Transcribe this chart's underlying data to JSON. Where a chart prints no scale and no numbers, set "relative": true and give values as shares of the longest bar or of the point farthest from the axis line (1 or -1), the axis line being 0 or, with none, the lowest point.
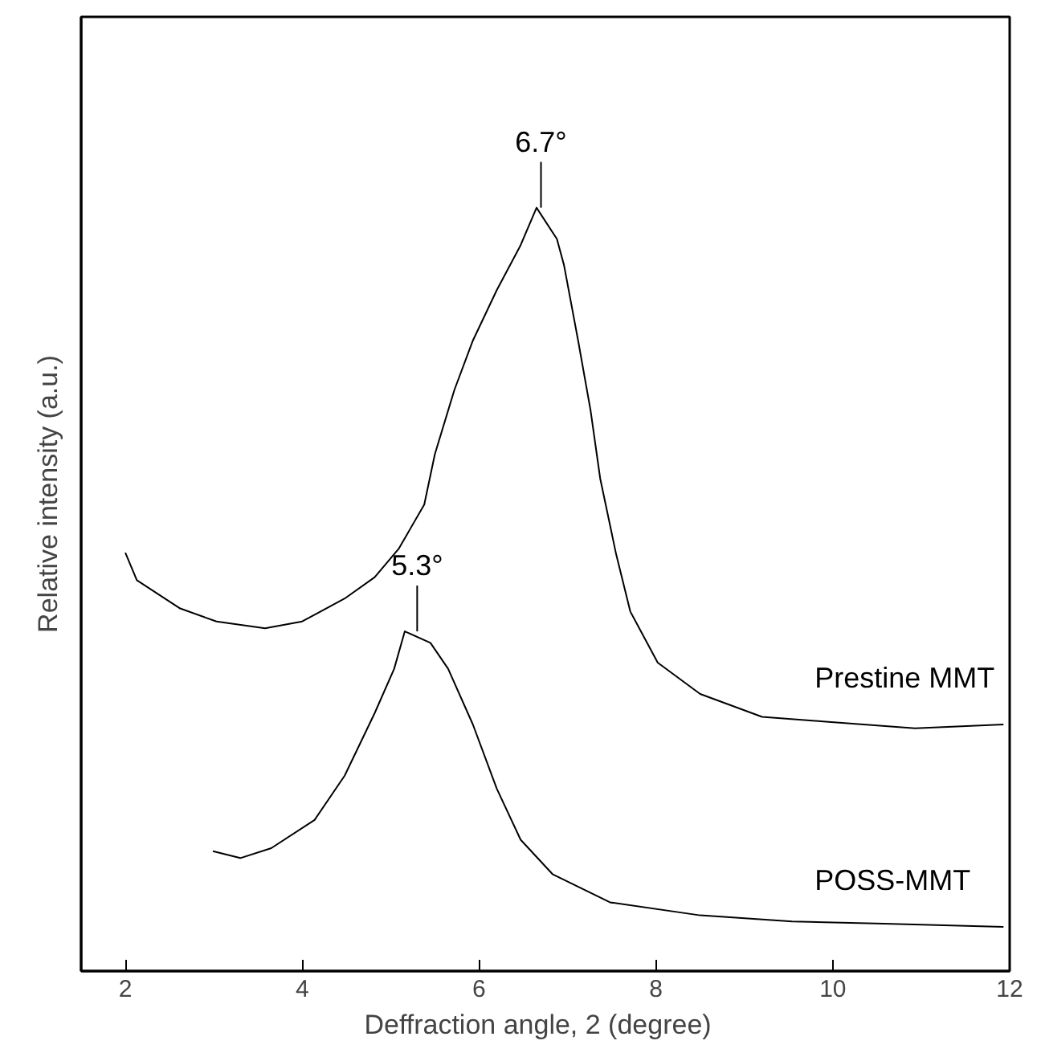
{
  "chart_data": {
    "type": "line",
    "relative": true,
    "xlabel": "Deffraction angle, 2   (degree)",
    "ylabel": "Relative intensity (a.u.)",
    "xlim": [
      1.5,
      12
    ],
    "xticks": [
      2,
      4,
      6,
      8,
      10,
      12
    ],
    "grid": false,
    "marker": "none",
    "line_style": "solid",
    "annotations": [
      {
        "text": "6.7°",
        "x": 6.7,
        "y": 1.0
      },
      {
        "text": "5.3°",
        "x": 5.3,
        "y": 0.445
      }
    ],
    "series": [
      {
        "name": "Prestine MMT",
        "color": "#000000",
        "x": [
          2.0,
          2.13,
          2.62,
          3.03,
          3.58,
          4.0,
          4.48,
          4.82,
          5.09,
          5.38,
          5.5,
          5.72,
          5.93,
          6.2,
          6.47,
          6.65,
          6.88,
          6.96,
          7.12,
          7.26,
          7.37,
          7.55,
          7.71,
          8.02,
          8.5,
          9.2,
          9.89,
          10.93,
          11.93
        ],
        "values": [
          0.548,
          0.512,
          0.475,
          0.458,
          0.449,
          0.458,
          0.488,
          0.516,
          0.553,
          0.611,
          0.677,
          0.761,
          0.826,
          0.892,
          0.951,
          1.0,
          0.959,
          0.925,
          0.826,
          0.735,
          0.645,
          0.546,
          0.471,
          0.404,
          0.363,
          0.333,
          0.327,
          0.318,
          0.323
        ]
      },
      {
        "name": "POSS-MMT",
        "color": "#000000",
        "x": [
          2.99,
          3.3,
          3.65,
          4.14,
          4.48,
          4.82,
          5.04,
          5.16,
          5.45,
          5.65,
          5.93,
          6.2,
          6.47,
          6.83,
          7.48,
          8.5,
          9.54,
          10.58,
          11.93
        ],
        "values": [
          0.157,
          0.148,
          0.161,
          0.198,
          0.256,
          0.338,
          0.396,
          0.445,
          0.43,
          0.396,
          0.323,
          0.239,
          0.172,
          0.127,
          0.09,
          0.073,
          0.065,
          0.062,
          0.058
        ]
      }
    ]
  }
}
